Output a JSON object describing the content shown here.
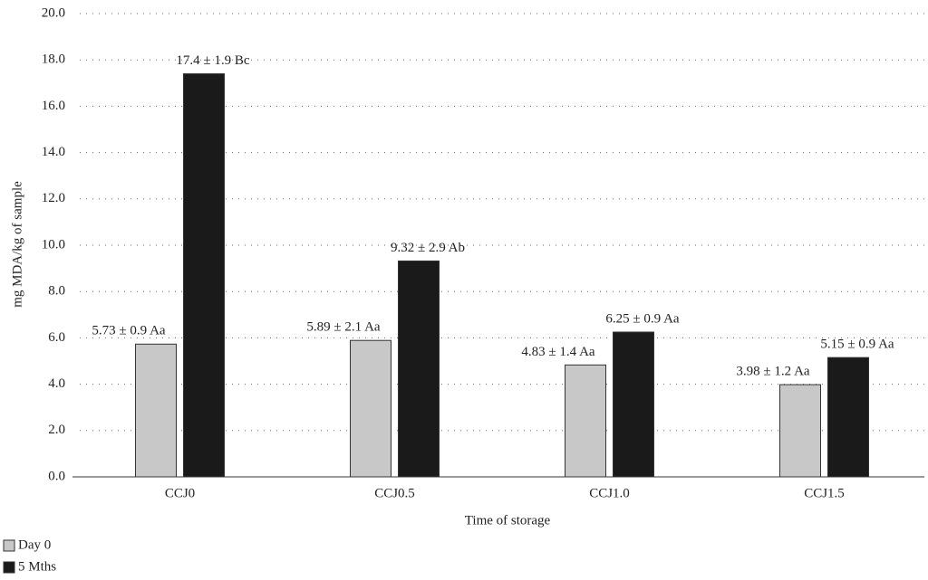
{
  "chart_data": {
    "type": "bar",
    "y_label": "mg MDA/kg of sample",
    "x_label": "Time of storage",
    "categories": [
      "CCJ0",
      "CCJ0.5",
      "CCJ1.0",
      "CCJ1.5"
    ],
    "series": [
      {
        "name": "Day 0",
        "color": "#c8c8c8",
        "values": [
          5.73,
          5.89,
          4.83,
          3.98
        ],
        "value_labels": [
          "5.73 ± 0.9 Aa",
          "5.89 ± 2.1 Aa",
          "4.83 ± 1.4 Aa",
          "3.98 ± 1.2 Aa"
        ]
      },
      {
        "name": "5 Mths",
        "color": "#1a1a1a",
        "values": [
          17.4,
          9.32,
          6.25,
          5.15
        ],
        "value_labels": [
          "17.4 ± 1.9 Bc",
          "9.32 ± 2.9 Ab",
          "6.25 ± 0.9 Aa",
          "5.15 ± 0.9 Aa"
        ]
      }
    ],
    "ylim": [
      0,
      20
    ],
    "yticks": [
      {
        "value": 0,
        "label": "0.0"
      },
      {
        "value": 2,
        "label": "2.0"
      },
      {
        "value": 4,
        "label": "4.0"
      },
      {
        "value": 6,
        "label": "6.0"
      },
      {
        "value": 8,
        "label": "8.0"
      },
      {
        "value": 10,
        "label": "10.0"
      },
      {
        "value": 12,
        "label": "12.0"
      },
      {
        "value": 14,
        "label": "14.0"
      },
      {
        "value": 16,
        "label": "16.0"
      },
      {
        "value": 18,
        "label": "18.0"
      },
      {
        "value": 20,
        "label": "20.0"
      }
    ],
    "grid": true,
    "legend": "bottom-left"
  }
}
